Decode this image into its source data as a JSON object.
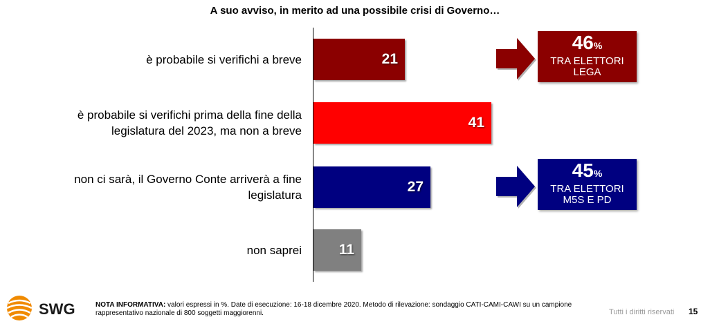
{
  "chart_data": {
    "type": "bar",
    "orientation": "horizontal",
    "title": "A suo avviso, in merito ad una possibile crisi di Governo…",
    "categories": [
      "è probabile si verifichi a breve",
      "è probabile si verifichi prima della fine della legislatura del 2023, ma non a breve",
      "non ci sarà, il Governo Conte arriverà a fine legislatura",
      "non saprei"
    ],
    "category_lines": [
      [
        "è probabile si verifichi a breve"
      ],
      [
        "è probabile si verifichi prima della fine della",
        "legislatura del 2023, ma non a breve"
      ],
      [
        "non ci sarà, il Governo Conte arriverà a fine",
        "legislatura"
      ],
      [
        "non saprei"
      ]
    ],
    "values": [
      21,
      41,
      27,
      11
    ],
    "colors": [
      "#8b0000",
      "#ff0000",
      "#000080",
      "#808080"
    ],
    "xlim": [
      0,
      47
    ],
    "grid": false,
    "legend": "none",
    "callouts": [
      {
        "category_index": 0,
        "value": "46",
        "unit": "%",
        "lines": [
          "TRA ELETTORI",
          "LEGA"
        ],
        "color": "#8b0000"
      },
      {
        "category_index": 2,
        "value": "45",
        "unit": "%",
        "lines": [
          "TRA ELETTORI",
          "M5S E PD"
        ],
        "color": "#000080"
      }
    ]
  },
  "footer": {
    "logo_text": "SWG",
    "note_label": "NOTA INFORMATIVA:",
    "note_text": " valori espressi in %. Date di esecuzione: 16-18 dicembre 2020. Metodo di rilevazione: sondaggio CATI-CAMI-CAWI su un campione rappresentativo nazionale di 800 soggetti maggiorenni.",
    "rights": "Tutti i diritti riservati",
    "page": "15"
  }
}
